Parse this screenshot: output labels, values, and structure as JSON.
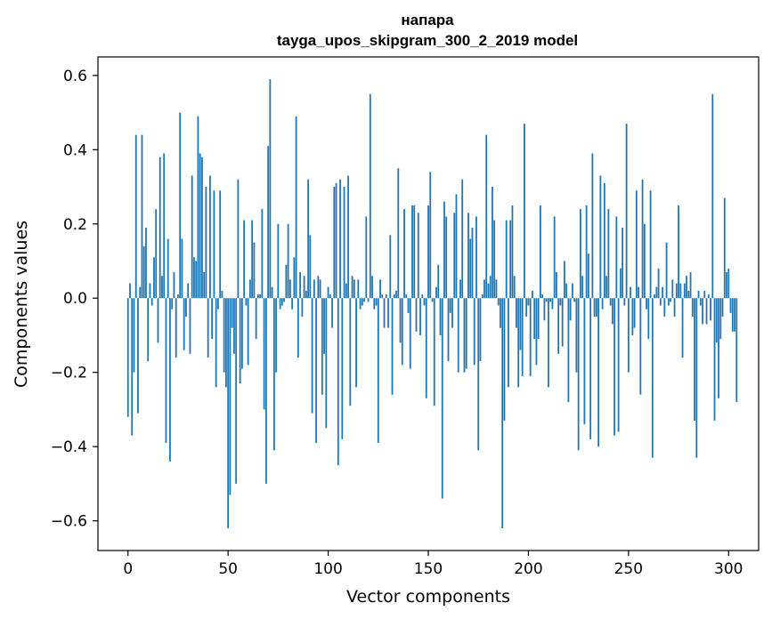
{
  "chart_data": {
    "type": "bar",
    "title": "напара",
    "subtitle": "tayga_upos_skipgram_300_2_2019 model",
    "xlabel": "Vector components",
    "ylabel": "Components values",
    "xlim": [
      -15,
      315
    ],
    "ylim": [
      -0.68,
      0.65
    ],
    "xticks": [
      0,
      50,
      100,
      150,
      200,
      250,
      300
    ],
    "xtick_labels": [
      "0",
      "50",
      "100",
      "150",
      "200",
      "250",
      "300"
    ],
    "yticks": [
      -0.6,
      -0.4,
      -0.2,
      0.0,
      0.2,
      0.4,
      0.6
    ],
    "ytick_labels": [
      "−0.6",
      "−0.4",
      "−0.2",
      "0.0",
      "0.2",
      "0.4",
      "0.6"
    ],
    "bar_color": "#1f77b4",
    "series": [
      {
        "name": "напара",
        "values": [
          -0.32,
          0.04,
          -0.37,
          -0.2,
          0.44,
          -0.31,
          0.03,
          0.44,
          0.14,
          0.19,
          -0.17,
          0.04,
          -0.02,
          0.11,
          0.24,
          -0.12,
          0.38,
          0.06,
          0.39,
          -0.39,
          0.16,
          -0.44,
          -0.03,
          0.07,
          -0.16,
          0.01,
          0.5,
          0.16,
          -0.14,
          -0.05,
          0.04,
          -0.15,
          0.33,
          0.11,
          0.1,
          0.49,
          0.39,
          0.38,
          0.07,
          0.3,
          -0.16,
          0.33,
          -0.11,
          0.29,
          -0.24,
          -0.03,
          0.29,
          0.02,
          -0.2,
          -0.24,
          -0.62,
          -0.53,
          -0.08,
          -0.15,
          -0.5,
          0.32,
          -0.23,
          -0.19,
          0.21,
          -0.02,
          -0.18,
          0.05,
          0.21,
          0.15,
          -0.11,
          0.01,
          0.01,
          0.24,
          -0.3,
          -0.5,
          0.41,
          0.59,
          0.03,
          -0.41,
          -0.2,
          0.2,
          -0.03,
          -0.02,
          -0.01,
          0.09,
          0.2,
          0.05,
          -0.03,
          0.11,
          0.49,
          -0.16,
          0.07,
          -0.05,
          0.06,
          0.02,
          0.32,
          0.17,
          -0.31,
          0.05,
          -0.39,
          0.06,
          0.05,
          -0.26,
          -0.15,
          -0.35,
          0.03,
          0.01,
          -0.08,
          0.3,
          0.31,
          -0.45,
          0.32,
          -0.38,
          0.3,
          0.04,
          0.33,
          -0.29,
          0.06,
          0.05,
          -0.24,
          0.05,
          -0.03,
          -0.02,
          -0.01,
          0.22,
          -0.01,
          0.55,
          0.06,
          -0.03,
          -0.02,
          -0.39,
          0.05,
          0.01,
          -0.08,
          0.01,
          -0.08,
          0.17,
          -0.26,
          0.01,
          0.02,
          0.35,
          -0.12,
          -0.18,
          0.24,
          0.01,
          -0.04,
          -0.19,
          0.25,
          0.25,
          -0.09,
          0.23,
          -0.1,
          0.01,
          -0.02,
          -0.27,
          0.25,
          0.34,
          -0.01,
          -0.29,
          0.03,
          0.09,
          -0.1,
          -0.54,
          0.26,
          0.22,
          -0.17,
          -0.04,
          -0.08,
          0.23,
          0.28,
          -0.2,
          0.05,
          0.32,
          -0.2,
          -0.19,
          0.23,
          0.16,
          0.19,
          -0.18,
          0.22,
          -0.41,
          -0.17,
          0.01,
          0.05,
          0.44,
          0.04,
          0.06,
          0.3,
          0.21,
          0.05,
          -0.02,
          -0.08,
          -0.62,
          -0.33,
          0.21,
          -0.24,
          0.21,
          0.25,
          0.06,
          -0.08,
          -0.24,
          -0.14,
          -0.21,
          0.47,
          -0.05,
          -0.02,
          -0.21,
          0.02,
          -0.11,
          -0.18,
          -0.11,
          0.25,
          0.01,
          -0.06,
          -0.01,
          -0.24,
          -0.01,
          -0.03,
          0.22,
          0.07,
          -0.15,
          -0.02,
          -0.13,
          0.1,
          0.04,
          -0.28,
          -0.06,
          0.04,
          -0.01,
          -0.2,
          -0.41,
          0.24,
          0.06,
          -0.34,
          0.25,
          0.12,
          -0.38,
          0.39,
          -0.05,
          -0.05,
          -0.4,
          0.33,
          -0.03,
          0.31,
          0.06,
          0.24,
          -0.02,
          -0.07,
          -0.37,
          0.22,
          -0.36,
          0.08,
          0.19,
          -0.02,
          0.47,
          -0.2,
          0.03,
          -0.1,
          -0.08,
          0.29,
          0.03,
          -0.26,
          0.32,
          0.2,
          -0.03,
          -0.11,
          0.29,
          -0.43,
          0.01,
          0.03,
          0.08,
          -0.02,
          0.03,
          -0.05,
          0.15,
          -0.02,
          -0.01,
          0.05,
          -0.05,
          0.04,
          0.25,
          0.04,
          -0.16,
          0.04,
          0.06,
          0.02,
          0.07,
          -0.05,
          -0.33,
          -0.43,
          0.02,
          -0.02,
          -0.07,
          0.02,
          -0.07,
          0.01,
          -0.06,
          0.55,
          -0.33,
          -0.12,
          -0.27,
          -0.11,
          -0.05,
          0.27,
          0.07,
          0.08,
          -0.04,
          -0.09,
          -0.09,
          -0.28
        ]
      }
    ]
  }
}
